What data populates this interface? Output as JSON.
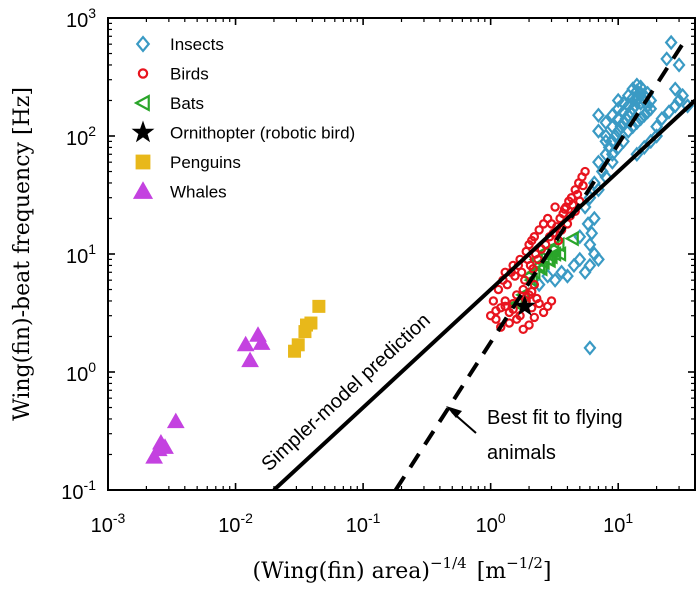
{
  "chart_data": {
    "type": "scatter",
    "xscale": "log",
    "yscale": "log",
    "xlim": [
      0.001,
      40
    ],
    "ylim": [
      0.1,
      1000
    ],
    "x_ticks": [
      {
        "v": 0.001,
        "base": "10",
        "exp": "-3"
      },
      {
        "v": 0.01,
        "base": "10",
        "exp": "-2"
      },
      {
        "v": 0.1,
        "base": "10",
        "exp": "-1"
      },
      {
        "v": 1,
        "base": "10",
        "exp": "0"
      },
      {
        "v": 10,
        "base": "10",
        "exp": "1"
      }
    ],
    "y_ticks": [
      {
        "v": 0.1,
        "base": "10",
        "exp": "-1"
      },
      {
        "v": 1,
        "base": "10",
        "exp": "0"
      },
      {
        "v": 10,
        "base": "10",
        "exp": "1"
      },
      {
        "v": 100,
        "base": "10",
        "exp": "2"
      },
      {
        "v": 1000,
        "base": "10",
        "exp": "3"
      }
    ],
    "xlabel": {
      "main": "(Wing(fin) area)",
      "sup": "−1/4",
      "unit": "[m",
      "unit_sup": "−1/2",
      "unit_close": "]"
    },
    "ylabel": "Wing(fin)-beat frequency [Hz]",
    "grid": false,
    "legend_position": "top-left",
    "series": [
      {
        "name": "Insects",
        "marker": "diamond",
        "color": "#3a9ac4",
        "filled": false,
        "points": [
          [
            2.4,
            5.5
          ],
          [
            2.8,
            6.5
          ],
          [
            3.2,
            6
          ],
          [
            3.6,
            7
          ],
          [
            4,
            6.5
          ],
          [
            4.5,
            8
          ],
          [
            5,
            9
          ],
          [
            5.5,
            7
          ],
          [
            6,
            8
          ],
          [
            6.5,
            10
          ],
          [
            7,
            9
          ],
          [
            6,
            1.6
          ],
          [
            6,
            12
          ],
          [
            6.2,
            15
          ],
          [
            5.8,
            18
          ],
          [
            6.5,
            20
          ],
          [
            5,
            14
          ],
          [
            5.5,
            25
          ],
          [
            6,
            30
          ],
          [
            6.5,
            40
          ],
          [
            7,
            35
          ],
          [
            7.5,
            50
          ],
          [
            8,
            45
          ],
          [
            7,
            60
          ],
          [
            8,
            70
          ],
          [
            8.5,
            80
          ],
          [
            9,
            90
          ],
          [
            9.5,
            100
          ],
          [
            10,
            110
          ],
          [
            10.5,
            120
          ],
          [
            11,
            130
          ],
          [
            11.5,
            140
          ],
          [
            12,
            150
          ],
          [
            12.5,
            160
          ],
          [
            13,
            170
          ],
          [
            13.5,
            180
          ],
          [
            14,
            200
          ],
          [
            14.5,
            210
          ],
          [
            15,
            190
          ],
          [
            16,
            220
          ],
          [
            17,
            230
          ],
          [
            18,
            200
          ],
          [
            8,
            100
          ],
          [
            9,
            120
          ],
          [
            10,
            140
          ],
          [
            11,
            160
          ],
          [
            12,
            180
          ],
          [
            13,
            210
          ],
          [
            14,
            240
          ],
          [
            15,
            260
          ],
          [
            9,
            60
          ],
          [
            10,
            80
          ],
          [
            11,
            90
          ],
          [
            12,
            110
          ],
          [
            13,
            120
          ],
          [
            14,
            130
          ],
          [
            15,
            140
          ],
          [
            16,
            150
          ],
          [
            17,
            160
          ],
          [
            18,
            170
          ],
          [
            8,
            130
          ],
          [
            9,
            150
          ],
          [
            10,
            170
          ],
          [
            11,
            190
          ],
          [
            12,
            220
          ],
          [
            13,
            250
          ],
          [
            14,
            270
          ],
          [
            15,
            230
          ],
          [
            16,
            200
          ],
          [
            17,
            180
          ],
          [
            7,
            110
          ],
          [
            8,
            90
          ],
          [
            9,
            70
          ],
          [
            7,
            150
          ],
          [
            10,
            200
          ],
          [
            20,
            120
          ],
          [
            22,
            140
          ],
          [
            25,
            160
          ],
          [
            28,
            180
          ],
          [
            30,
            200
          ],
          [
            32,
            220
          ],
          [
            35,
            180
          ],
          [
            26,
            620
          ],
          [
            24,
            450
          ],
          [
            30,
            400
          ],
          [
            28,
            250
          ],
          [
            20,
            100
          ],
          [
            18,
            90
          ],
          [
            16,
            80
          ],
          [
            14,
            70
          ]
        ]
      },
      {
        "name": "Birds",
        "marker": "circle",
        "color": "#e8141e",
        "filled": false,
        "points": [
          [
            1,
            3
          ],
          [
            1.1,
            2.8
          ],
          [
            1.2,
            3.5
          ],
          [
            1.3,
            4
          ],
          [
            1.4,
            3.2
          ],
          [
            1.5,
            3.8
          ],
          [
            1.6,
            4.5
          ],
          [
            1.7,
            3
          ],
          [
            1.8,
            5
          ],
          [
            1.9,
            4
          ],
          [
            2,
            4.5
          ],
          [
            2.1,
            3.5
          ],
          [
            2.2,
            5.5
          ],
          [
            2.3,
            4.2
          ],
          [
            2.4,
            3.8
          ],
          [
            1.05,
            4
          ],
          [
            1.15,
            5
          ],
          [
            1.25,
            6
          ],
          [
            1.35,
            5.5
          ],
          [
            1.45,
            7
          ],
          [
            1.55,
            6.5
          ],
          [
            1.65,
            8
          ],
          [
            1.75,
            7
          ],
          [
            1.85,
            6
          ],
          [
            1.95,
            9
          ],
          [
            2.05,
            8
          ],
          [
            2.15,
            7.5
          ],
          [
            2.25,
            10
          ],
          [
            2.35,
            9
          ],
          [
            2.5,
            11
          ],
          [
            2.7,
            12
          ],
          [
            2.9,
            14
          ],
          [
            3.1,
            15
          ],
          [
            3.3,
            17
          ],
          [
            3.5,
            20
          ],
          [
            3.7,
            22
          ],
          [
            3.9,
            25
          ],
          [
            4.1,
            28
          ],
          [
            4.3,
            30
          ],
          [
            4.6,
            35
          ],
          [
            4.9,
            40
          ],
          [
            5.2,
            45
          ],
          [
            5.5,
            50
          ],
          [
            3,
            18
          ],
          [
            3.2,
            25
          ],
          [
            3.4,
            13
          ],
          [
            3.6,
            16
          ],
          [
            3.8,
            24
          ],
          [
            4,
            18
          ],
          [
            4.2,
            21
          ],
          [
            4.4,
            26
          ],
          [
            4.6,
            23
          ],
          [
            4.8,
            32
          ],
          [
            5,
            28
          ],
          [
            5.3,
            38
          ],
          [
            2,
            12
          ],
          [
            2.2,
            14
          ],
          [
            2.4,
            16
          ],
          [
            2.6,
            18
          ],
          [
            2.8,
            20
          ],
          [
            1.7,
            9
          ],
          [
            1.9,
            10.5
          ],
          [
            2.1,
            13
          ],
          [
            1.5,
            8
          ],
          [
            1.3,
            7
          ],
          [
            1.2,
            2.4
          ],
          [
            1.4,
            2.6
          ],
          [
            1.6,
            2.8
          ],
          [
            2,
            2.5
          ],
          [
            2.2,
            2.9
          ],
          [
            1.8,
            2.3
          ],
          [
            2.6,
            3.2
          ],
          [
            2.8,
            3.6
          ],
          [
            3,
            4
          ],
          [
            1.1,
            3.3
          ],
          [
            1.3,
            3.6
          ],
          [
            1.5,
            3.4
          ],
          [
            1.7,
            3.9
          ],
          [
            1.9,
            4.3
          ],
          [
            2.1,
            4.8
          ]
        ]
      },
      {
        "name": "Bats",
        "marker": "triangle-left",
        "color": "#2aa52a",
        "filled": false,
        "points": [
          [
            1.6,
            3.8
          ],
          [
            1.8,
            4.5
          ],
          [
            2,
            6.5
          ],
          [
            2.2,
            7
          ],
          [
            2.4,
            8
          ],
          [
            2.6,
            8.5
          ],
          [
            2.8,
            9
          ],
          [
            3,
            9.5
          ],
          [
            3.2,
            10
          ],
          [
            2.5,
            7.5
          ],
          [
            2.7,
            10.5
          ],
          [
            2.9,
            8.8
          ],
          [
            3.1,
            11
          ],
          [
            3.4,
            12
          ],
          [
            4.4,
            13.5
          ],
          [
            2.1,
            6
          ],
          [
            2.3,
            9
          ],
          [
            3.5,
            10
          ]
        ]
      },
      {
        "name": "Ornithopter (robotic bird)",
        "marker": "star",
        "color": "#000000",
        "filled": true,
        "points": [
          [
            1.85,
            3.6
          ]
        ]
      },
      {
        "name": "Penguins",
        "marker": "square",
        "color": "#e8b81a",
        "filled": true,
        "points": [
          [
            0.029,
            1.5
          ],
          [
            0.031,
            1.7
          ],
          [
            0.035,
            2.2
          ],
          [
            0.036,
            2.5
          ],
          [
            0.039,
            2.6
          ],
          [
            0.045,
            3.6
          ]
        ]
      },
      {
        "name": "Whales",
        "marker": "triangle-up",
        "color": "#c442e0",
        "filled": true,
        "points": [
          [
            0.0023,
            0.19
          ],
          [
            0.0025,
            0.22
          ],
          [
            0.0026,
            0.25
          ],
          [
            0.0028,
            0.23
          ],
          [
            0.0034,
            0.38
          ],
          [
            0.012,
            1.7
          ],
          [
            0.013,
            1.25
          ],
          [
            0.015,
            2.05
          ],
          [
            0.016,
            1.75
          ]
        ]
      },
      {
        "name": "",
        "marker": "line-solid",
        "color": "#000000",
        "points": [
          [
            0.02,
            0.1
          ],
          [
            40,
            200
          ]
        ]
      },
      {
        "name": "",
        "marker": "line-dashed",
        "color": "#000000",
        "points": [
          [
            0.18,
            0.1
          ],
          [
            35,
            700
          ]
        ]
      }
    ],
    "annotations": {
      "simpler": "Simpler-model prediction",
      "bestfit_line1": "Best fit to flying",
      "bestfit_line2": "animals"
    }
  }
}
